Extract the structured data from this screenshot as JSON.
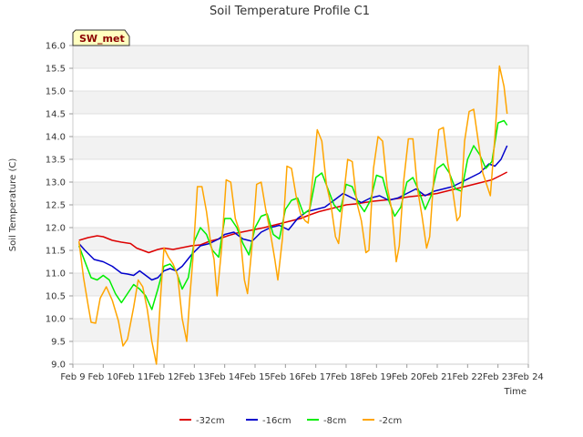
{
  "chart_data": {
    "type": "line",
    "title": "Soil Temperature Profile C1",
    "xlabel": "Time",
    "ylabel": "Soil Temperature (C)",
    "badge": "SW_met",
    "ylim": [
      9.0,
      16.0
    ],
    "yticks": [
      "9.0",
      "9.5",
      "10.0",
      "10.5",
      "11.0",
      "11.5",
      "12.0",
      "12.5",
      "13.0",
      "13.5",
      "14.0",
      "14.5",
      "15.0",
      "15.5",
      "16.0"
    ],
    "xlim": [
      9,
      24
    ],
    "xticks": [
      {
        "value": 9,
        "label": "Feb 9"
      },
      {
        "value": 10,
        "label": "Feb 10"
      },
      {
        "value": 11,
        "label": "Feb 11"
      },
      {
        "value": 12,
        "label": "Feb 12"
      },
      {
        "value": 13,
        "label": "Feb 13"
      },
      {
        "value": 14,
        "label": "Feb 14"
      },
      {
        "value": 15,
        "label": "Feb 15"
      },
      {
        "value": 16,
        "label": "Feb 16"
      },
      {
        "value": 17,
        "label": "Feb 17"
      },
      {
        "value": 18,
        "label": "Feb 18"
      },
      {
        "value": 19,
        "label": "Feb 19"
      },
      {
        "value": 20,
        "label": "Feb 20"
      },
      {
        "value": 21,
        "label": "Feb 21"
      },
      {
        "value": 22,
        "label": "Feb 22"
      },
      {
        "value": 23,
        "label": "Feb 23"
      },
      {
        "value": 24,
        "label": "Feb 24"
      }
    ],
    "grid": "horizontal bands",
    "legend_position": "bottom",
    "series": [
      {
        "name": "-32cm",
        "color": "#dd0000",
        "x": [
          9.2,
          9.5,
          9.8,
          10.0,
          10.3,
          10.6,
          10.9,
          11.1,
          11.3,
          11.5,
          11.8,
          12.0,
          12.3,
          12.6,
          12.9,
          13.2,
          13.5,
          13.8,
          14.1,
          14.4,
          14.7,
          15.0,
          15.3,
          15.6,
          15.9,
          16.2,
          16.5,
          16.8,
          17.1,
          17.4,
          17.7,
          18.0,
          18.3,
          18.6,
          18.9,
          19.2,
          19.5,
          19.8,
          20.1,
          20.4,
          20.7,
          21.0,
          21.3,
          21.6,
          21.9,
          22.2,
          22.5,
          22.8,
          23.1,
          23.3
        ],
        "y": [
          11.72,
          11.78,
          11.82,
          11.8,
          11.72,
          11.68,
          11.65,
          11.55,
          11.5,
          11.45,
          11.52,
          11.55,
          11.52,
          11.56,
          11.6,
          11.62,
          11.7,
          11.75,
          11.82,
          11.88,
          11.92,
          11.96,
          12.0,
          12.05,
          12.1,
          12.15,
          12.2,
          12.28,
          12.35,
          12.4,
          12.45,
          12.5,
          12.52,
          12.55,
          12.58,
          12.6,
          12.62,
          12.65,
          12.68,
          12.7,
          12.72,
          12.75,
          12.8,
          12.85,
          12.9,
          12.95,
          13.0,
          13.05,
          13.15,
          13.22
        ]
      },
      {
        "name": "-16cm",
        "color": "#0000cc",
        "x": [
          9.2,
          9.4,
          9.7,
          10.0,
          10.3,
          10.6,
          10.8,
          11.0,
          11.2,
          11.4,
          11.6,
          11.8,
          12.0,
          12.2,
          12.4,
          12.6,
          12.9,
          13.2,
          13.5,
          13.8,
          14.0,
          14.3,
          14.6,
          14.9,
          15.2,
          15.5,
          15.8,
          16.1,
          16.4,
          16.7,
          17.0,
          17.3,
          17.6,
          17.9,
          18.2,
          18.5,
          18.8,
          19.1,
          19.4,
          19.7,
          20.0,
          20.3,
          20.6,
          20.9,
          21.2,
          21.5,
          21.8,
          22.1,
          22.4,
          22.7,
          22.9,
          23.1,
          23.3
        ],
        "y": [
          11.65,
          11.5,
          11.3,
          11.25,
          11.15,
          11.0,
          10.98,
          10.95,
          11.05,
          10.95,
          10.85,
          10.9,
          11.05,
          11.1,
          11.05,
          11.15,
          11.4,
          11.6,
          11.65,
          11.75,
          11.85,
          11.9,
          11.75,
          11.7,
          11.9,
          12.0,
          12.05,
          11.95,
          12.2,
          12.35,
          12.4,
          12.45,
          12.6,
          12.75,
          12.65,
          12.55,
          12.65,
          12.7,
          12.6,
          12.65,
          12.75,
          12.85,
          12.7,
          12.8,
          12.85,
          12.9,
          13.0,
          13.1,
          13.2,
          13.4,
          13.35,
          13.5,
          13.8
        ]
      },
      {
        "name": "-8cm",
        "color": "#00ee00",
        "x": [
          9.2,
          9.4,
          9.6,
          9.8,
          10.0,
          10.2,
          10.4,
          10.6,
          10.8,
          11.0,
          11.2,
          11.4,
          11.6,
          11.8,
          12.0,
          12.2,
          12.4,
          12.6,
          12.8,
          13.0,
          13.2,
          13.4,
          13.6,
          13.8,
          14.0,
          14.2,
          14.4,
          14.6,
          14.8,
          15.0,
          15.2,
          15.4,
          15.6,
          15.8,
          16.0,
          16.2,
          16.4,
          16.6,
          16.8,
          17.0,
          17.2,
          17.4,
          17.6,
          17.8,
          18.0,
          18.2,
          18.4,
          18.6,
          18.8,
          19.0,
          19.2,
          19.4,
          19.6,
          19.8,
          20.0,
          20.2,
          20.4,
          20.6,
          20.8,
          21.0,
          21.2,
          21.4,
          21.6,
          21.8,
          22.0,
          22.2,
          22.4,
          22.6,
          22.8,
          23.0,
          23.2,
          23.3
        ],
        "y": [
          11.6,
          11.25,
          10.9,
          10.85,
          10.95,
          10.85,
          10.55,
          10.35,
          10.55,
          10.75,
          10.65,
          10.5,
          10.2,
          10.65,
          11.15,
          11.2,
          11.05,
          10.65,
          10.9,
          11.7,
          12.0,
          11.85,
          11.5,
          11.35,
          12.2,
          12.2,
          12.0,
          11.65,
          11.4,
          12.0,
          12.25,
          12.3,
          11.85,
          11.75,
          12.4,
          12.6,
          12.65,
          12.3,
          12.4,
          13.1,
          13.2,
          12.85,
          12.5,
          12.35,
          12.95,
          12.9,
          12.55,
          12.35,
          12.6,
          13.15,
          13.1,
          12.6,
          12.25,
          12.45,
          13.0,
          13.1,
          12.8,
          12.4,
          12.7,
          13.3,
          13.4,
          13.2,
          12.85,
          12.8,
          13.5,
          13.8,
          13.6,
          13.3,
          13.45,
          14.3,
          14.35,
          14.25
        ]
      },
      {
        "name": "-2cm",
        "color": "#ffa500",
        "x": [
          9.2,
          9.35,
          9.5,
          9.6,
          9.75,
          9.9,
          10.1,
          10.3,
          10.5,
          10.65,
          10.8,
          11.0,
          11.15,
          11.3,
          11.45,
          11.6,
          11.75,
          11.9,
          12.0,
          12.15,
          12.3,
          12.45,
          12.6,
          12.75,
          12.85,
          12.95,
          13.1,
          13.25,
          13.4,
          13.55,
          13.65,
          13.75,
          13.9,
          14.05,
          14.2,
          14.35,
          14.5,
          14.65,
          14.75,
          14.9,
          15.05,
          15.2,
          15.35,
          15.5,
          15.65,
          15.75,
          15.9,
          16.05,
          16.2,
          16.35,
          16.5,
          16.65,
          16.75,
          16.9,
          17.05,
          17.2,
          17.35,
          17.5,
          17.65,
          17.75,
          17.9,
          18.05,
          18.2,
          18.35,
          18.5,
          18.65,
          18.75,
          18.9,
          19.05,
          19.2,
          19.35,
          19.5,
          19.65,
          19.75,
          19.9,
          20.05,
          20.2,
          20.35,
          20.5,
          20.65,
          20.75,
          20.9,
          21.05,
          21.2,
          21.35,
          21.5,
          21.65,
          21.75,
          21.9,
          22.05,
          22.2,
          22.35,
          22.5,
          22.65,
          22.75,
          22.9,
          23.05,
          23.2,
          23.3
        ],
        "y": [
          11.7,
          10.9,
          10.3,
          9.92,
          9.9,
          10.45,
          10.7,
          10.4,
          9.95,
          9.4,
          9.55,
          10.25,
          10.85,
          10.7,
          10.2,
          9.5,
          9.0,
          10.6,
          11.55,
          11.35,
          11.2,
          10.95,
          10.0,
          9.5,
          10.45,
          11.3,
          12.9,
          12.9,
          12.35,
          11.6,
          11.3,
          10.5,
          11.55,
          13.05,
          13.0,
          12.2,
          11.9,
          10.85,
          10.55,
          11.6,
          12.95,
          13.0,
          12.4,
          11.9,
          11.3,
          10.85,
          11.75,
          13.35,
          13.3,
          12.7,
          12.3,
          12.15,
          12.1,
          13.1,
          14.15,
          13.9,
          12.95,
          12.5,
          11.8,
          11.65,
          12.6,
          13.5,
          13.45,
          12.55,
          12.15,
          11.45,
          11.5,
          13.3,
          14.0,
          13.9,
          12.9,
          12.4,
          11.25,
          11.6,
          13.05,
          13.95,
          13.95,
          12.85,
          12.25,
          11.55,
          11.8,
          13.25,
          14.15,
          14.2,
          13.4,
          12.85,
          12.15,
          12.25,
          13.9,
          14.55,
          14.6,
          13.9,
          13.2,
          12.9,
          12.7,
          14.0,
          15.55,
          15.1,
          14.5
        ]
      }
    ]
  }
}
